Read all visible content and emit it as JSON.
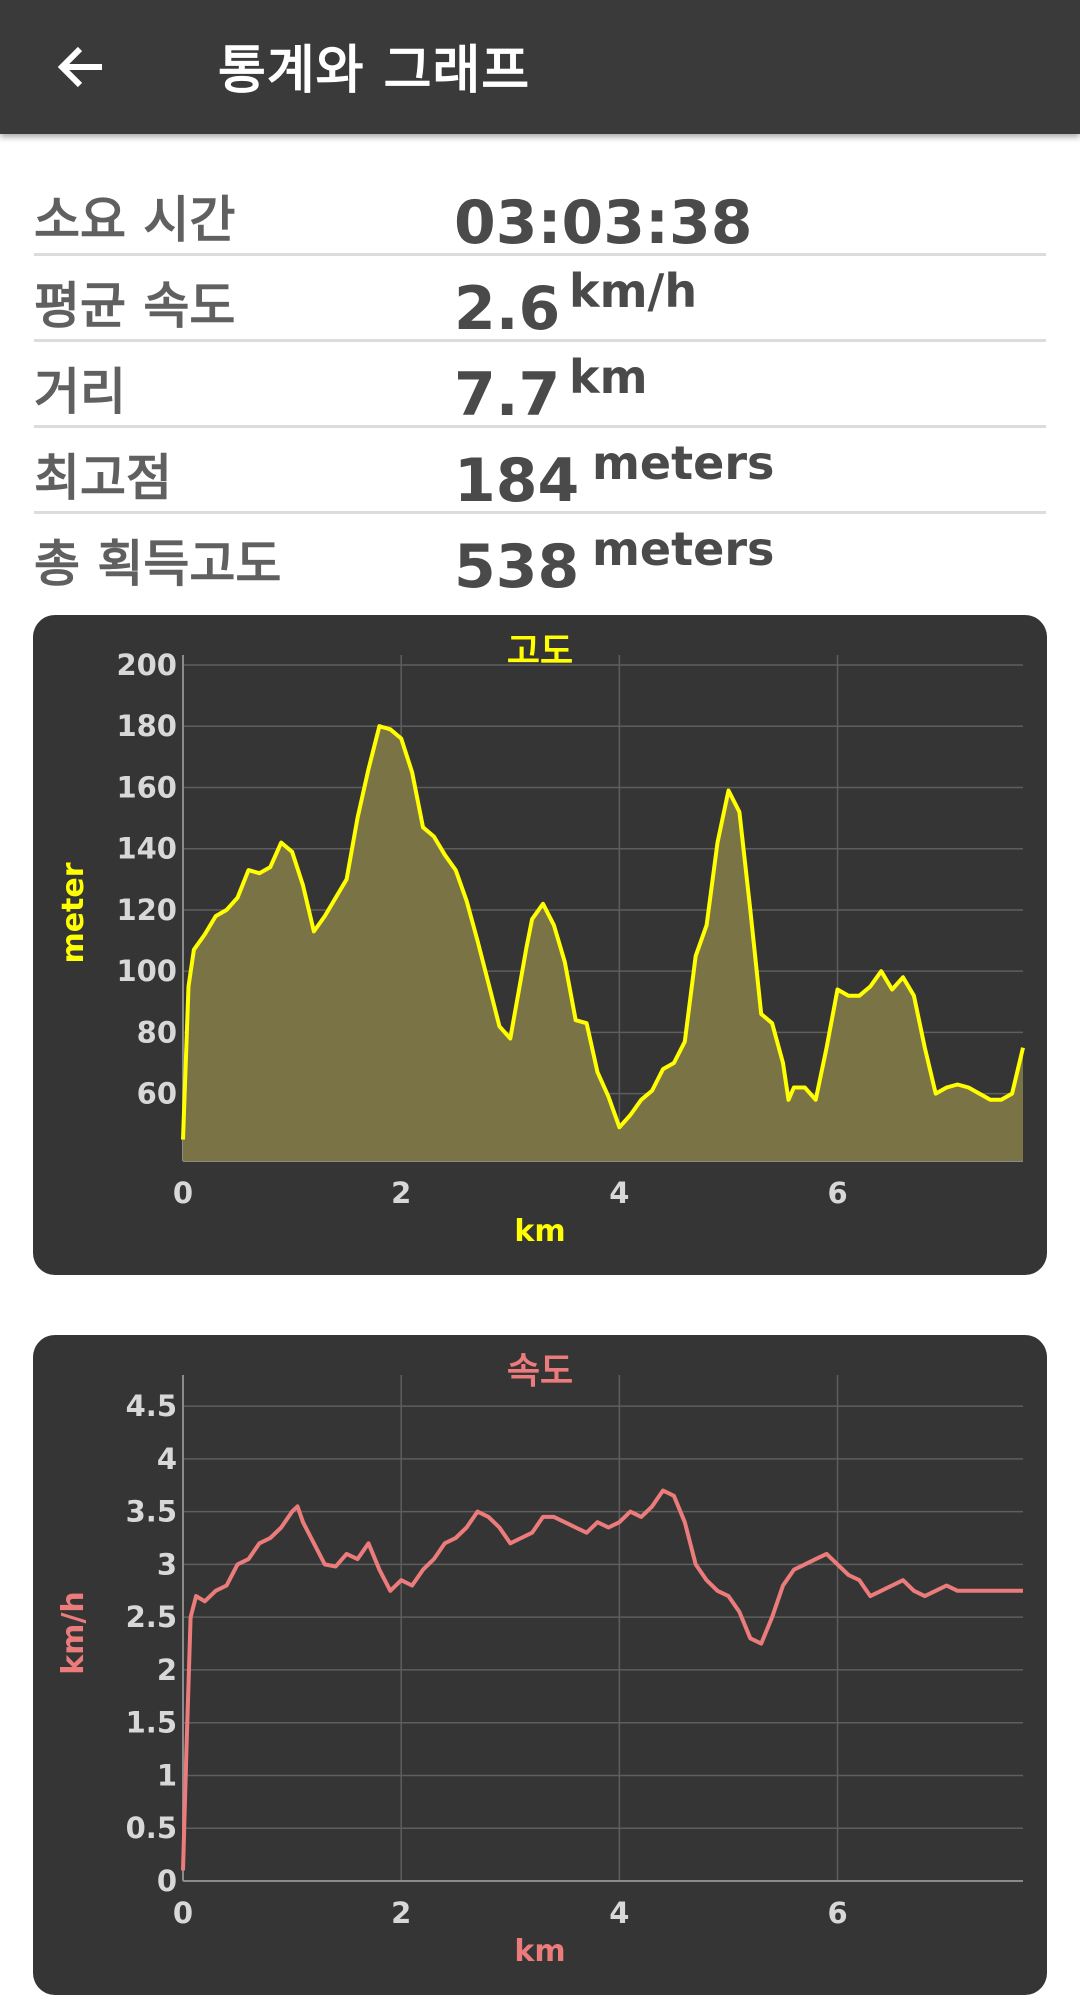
{
  "appbar": {
    "title": "통계와 그래프",
    "back_icon": "arrow-left-icon"
  },
  "stats": [
    {
      "label": "소요 시간",
      "value": "03:03:38",
      "unit": ""
    },
    {
      "label": "평균 속도",
      "value": "2.6",
      "unit": "km/h"
    },
    {
      "label": "거리",
      "value": "7.7",
      "unit": "km"
    },
    {
      "label": "최고점",
      "value": "184",
      "unit": "meters"
    },
    {
      "label": "총 획득고도",
      "value": "538",
      "unit": "meters"
    }
  ],
  "chart_data": [
    {
      "type": "area",
      "title": "고도",
      "xlabel": "km",
      "ylabel": "meter",
      "color": "#ffff00",
      "fill": "#7a7345",
      "xlim": [
        0,
        7.7
      ],
      "ylim": [
        38,
        200
      ],
      "xticks": [
        "0",
        "2",
        "4",
        "6"
      ],
      "yticks": [
        "200",
        "180",
        "160",
        "140",
        "120",
        "100",
        "80",
        "60"
      ],
      "grid": true,
      "x": [
        0,
        0.05,
        0.1,
        0.2,
        0.3,
        0.4,
        0.5,
        0.6,
        0.7,
        0.8,
        0.9,
        1.0,
        1.1,
        1.2,
        1.3,
        1.4,
        1.5,
        1.6,
        1.7,
        1.8,
        1.9,
        2.0,
        2.1,
        2.2,
        2.3,
        2.4,
        2.5,
        2.6,
        2.7,
        2.8,
        2.9,
        3.0,
        3.1,
        3.15,
        3.2,
        3.3,
        3.4,
        3.5,
        3.6,
        3.7,
        3.8,
        3.9,
        4.0,
        4.1,
        4.2,
        4.3,
        4.4,
        4.5,
        4.6,
        4.7,
        4.8,
        4.9,
        5.0,
        5.1,
        5.2,
        5.3,
        5.4,
        5.5,
        5.55,
        5.6,
        5.7,
        5.8,
        5.9,
        6.0,
        6.1,
        6.2,
        6.3,
        6.4,
        6.5,
        6.6,
        6.7,
        6.8,
        6.9,
        7.0,
        7.1,
        7.2,
        7.3,
        7.4,
        7.5,
        7.6,
        7.7
      ],
      "y": [
        45,
        95,
        107,
        112,
        118,
        120,
        124,
        133,
        132,
        134,
        142,
        139,
        128,
        113,
        118,
        124,
        130,
        150,
        166,
        180,
        179,
        176,
        165,
        147,
        144,
        138,
        133,
        123,
        110,
        96,
        82,
        78,
        98,
        108,
        117,
        122,
        115,
        103,
        84,
        83,
        67,
        59,
        49,
        53,
        58,
        61,
        68,
        70,
        77,
        105,
        115,
        142,
        159,
        152,
        120,
        86,
        83,
        70,
        58,
        62,
        62,
        58,
        75,
        94,
        92,
        92,
        95,
        100,
        94,
        98,
        92,
        75,
        60,
        62,
        63,
        62,
        60,
        58,
        58,
        60,
        75
      ]
    },
    {
      "type": "line",
      "title": "속도",
      "xlabel": "km",
      "ylabel": "km/h",
      "color": "#ec7c7c",
      "xlim": [
        0,
        7.7
      ],
      "ylim": [
        0,
        4.7
      ],
      "xticks": [
        "0",
        "2",
        "4",
        "6"
      ],
      "yticks": [
        "4.5",
        "4",
        "3.5",
        "3",
        "2.5",
        "2",
        "1.5",
        "1",
        "0.5",
        "0"
      ],
      "grid": true,
      "x": [
        0,
        0.03,
        0.07,
        0.12,
        0.2,
        0.3,
        0.4,
        0.5,
        0.6,
        0.7,
        0.8,
        0.9,
        1.0,
        1.05,
        1.1,
        1.2,
        1.3,
        1.4,
        1.5,
        1.6,
        1.7,
        1.8,
        1.9,
        2.0,
        2.1,
        2.2,
        2.3,
        2.4,
        2.5,
        2.6,
        2.7,
        2.8,
        2.9,
        3.0,
        3.1,
        3.2,
        3.3,
        3.4,
        3.5,
        3.6,
        3.7,
        3.8,
        3.9,
        4.0,
        4.1,
        4.2,
        4.3,
        4.4,
        4.5,
        4.6,
        4.7,
        4.8,
        4.9,
        5.0,
        5.1,
        5.2,
        5.3,
        5.4,
        5.5,
        5.6,
        5.7,
        5.8,
        5.9,
        6.0,
        6.1,
        6.2,
        6.3,
        6.4,
        6.5,
        6.6,
        6.7,
        6.8,
        6.9,
        7.0,
        7.1,
        7.2,
        7.3,
        7.4,
        7.5,
        7.6,
        7.7
      ],
      "y": [
        0.1,
        1.2,
        2.5,
        2.7,
        2.65,
        2.75,
        2.8,
        3.0,
        3.05,
        3.2,
        3.25,
        3.35,
        3.5,
        3.55,
        3.4,
        3.2,
        3.0,
        2.98,
        3.1,
        3.05,
        3.2,
        2.95,
        2.75,
        2.85,
        2.8,
        2.95,
        3.05,
        3.2,
        3.25,
        3.35,
        3.5,
        3.45,
        3.35,
        3.2,
        3.25,
        3.3,
        3.45,
        3.45,
        3.4,
        3.35,
        3.3,
        3.4,
        3.35,
        3.4,
        3.5,
        3.45,
        3.55,
        3.7,
        3.65,
        3.4,
        3.0,
        2.85,
        2.75,
        2.7,
        2.55,
        2.3,
        2.25,
        2.5,
        2.8,
        2.95,
        3.0,
        3.05,
        3.1,
        3.0,
        2.9,
        2.85,
        2.7,
        2.75,
        2.8,
        2.85,
        2.75,
        2.7,
        2.75,
        2.8,
        2.75,
        2.75,
        2.75,
        2.75,
        2.75,
        2.75,
        2.75
      ]
    }
  ]
}
